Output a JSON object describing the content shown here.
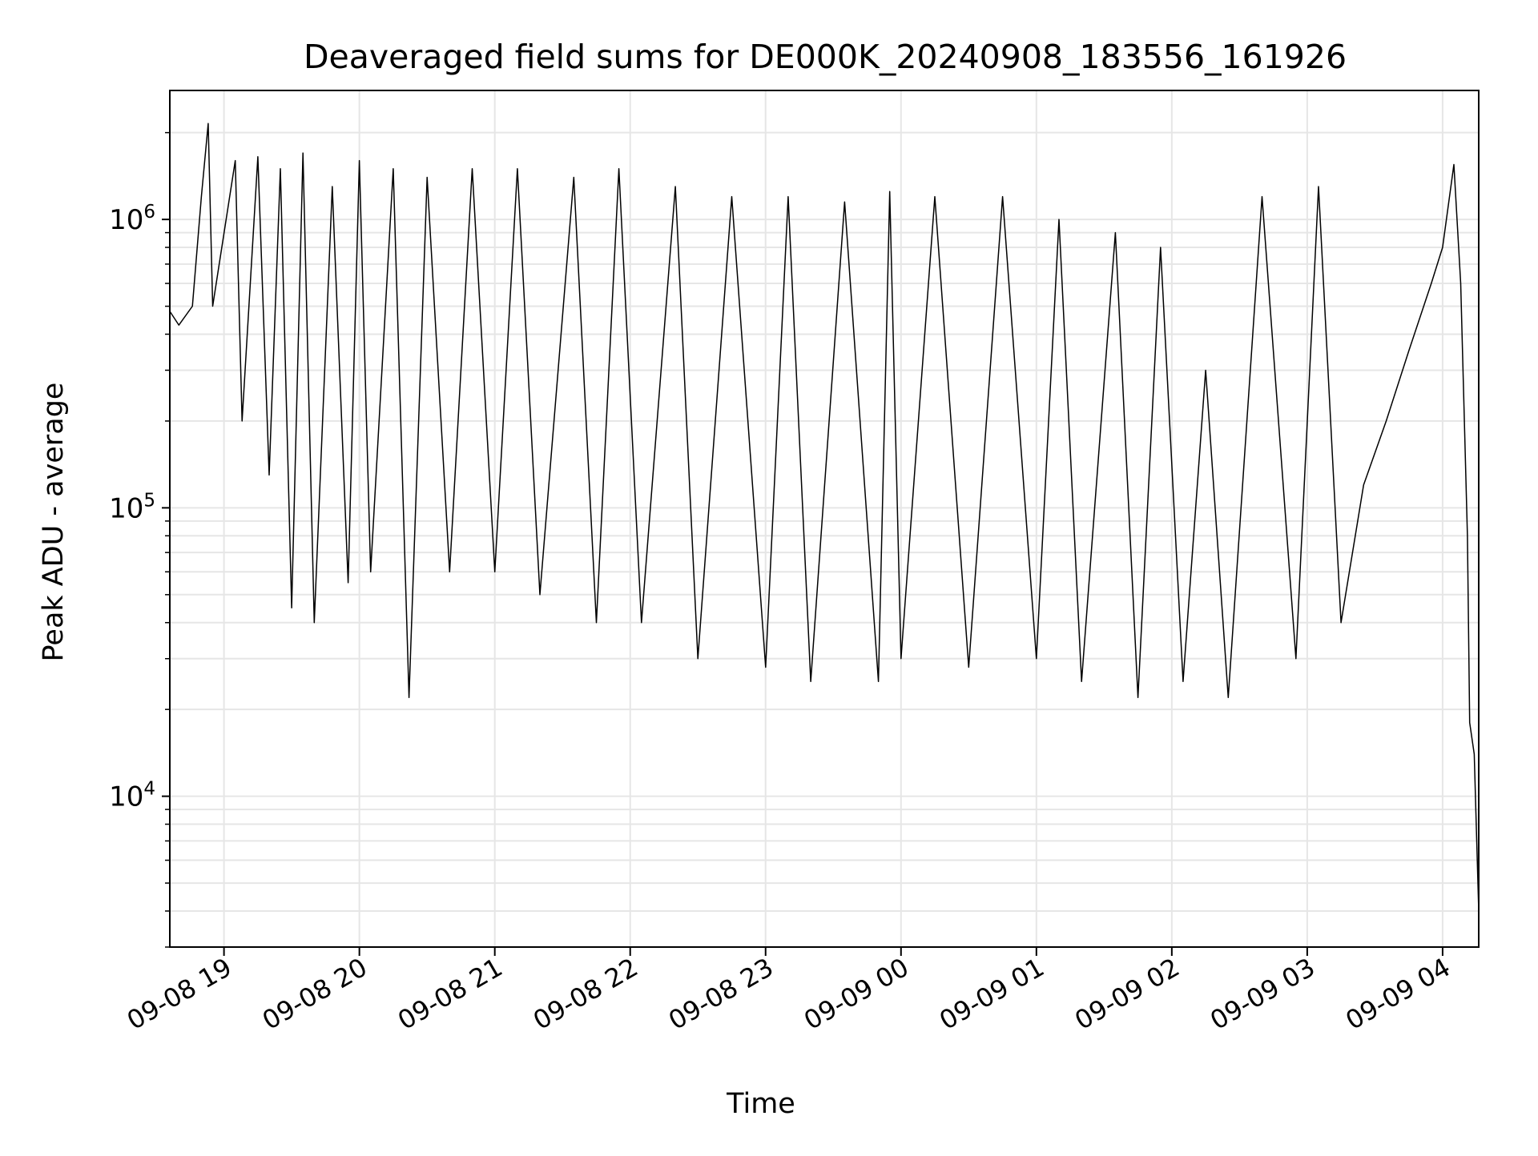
{
  "chart_data": {
    "type": "line",
    "title": "Deaveraged field sums for DE000K_20240908_183556_161926",
    "xlabel": "Time",
    "ylabel": "Peak ADU - average",
    "yscale": "log",
    "ylim": [
      3000,
      2800000
    ],
    "xlim": [
      "2024-09-08 18:36",
      "2024-09-09 04:16"
    ],
    "grid": true,
    "x_ticks": [
      {
        "value": "2024-09-08 19:00",
        "label": "09-08 19"
      },
      {
        "value": "2024-09-08 20:00",
        "label": "09-08 20"
      },
      {
        "value": "2024-09-08 21:00",
        "label": "09-08 21"
      },
      {
        "value": "2024-09-08 22:00",
        "label": "09-08 22"
      },
      {
        "value": "2024-09-08 23:00",
        "label": "09-08 23"
      },
      {
        "value": "2024-09-09 00:00",
        "label": "09-09 00"
      },
      {
        "value": "2024-09-09 01:00",
        "label": "09-09 01"
      },
      {
        "value": "2024-09-09 02:00",
        "label": "09-09 02"
      },
      {
        "value": "2024-09-09 03:00",
        "label": "09-09 03"
      },
      {
        "value": "2024-09-09 04:00",
        "label": "09-09 04"
      }
    ],
    "y_ticks": [
      {
        "value": 10000,
        "base": "10",
        "exp": "4"
      },
      {
        "value": 100000,
        "base": "10",
        "exp": "5"
      },
      {
        "value": 1000000,
        "base": "10",
        "exp": "6"
      }
    ],
    "series": [
      {
        "color": "#000000",
        "points": [
          [
            "2024-09-08 18:36",
            480000
          ],
          [
            "2024-09-08 18:40",
            430000
          ],
          [
            "2024-09-08 18:46",
            500000
          ],
          [
            "2024-09-08 18:50",
            1200000
          ],
          [
            "2024-09-08 18:53",
            2150000
          ],
          [
            "2024-09-08 18:55",
            500000
          ],
          [
            "2024-09-08 19:05",
            1600000
          ],
          [
            "2024-09-08 19:08",
            200000
          ],
          [
            "2024-09-08 19:15",
            1650000
          ],
          [
            "2024-09-08 19:20",
            130000
          ],
          [
            "2024-09-08 19:25",
            1500000
          ],
          [
            "2024-09-08 19:30",
            45000
          ],
          [
            "2024-09-08 19:35",
            1700000
          ],
          [
            "2024-09-08 19:40",
            40000
          ],
          [
            "2024-09-08 19:48",
            1300000
          ],
          [
            "2024-09-08 19:55",
            55000
          ],
          [
            "2024-09-08 20:00",
            1600000
          ],
          [
            "2024-09-08 20:05",
            60000
          ],
          [
            "2024-09-08 20:15",
            1500000
          ],
          [
            "2024-09-08 20:22",
            22000
          ],
          [
            "2024-09-08 20:30",
            1400000
          ],
          [
            "2024-09-08 20:40",
            60000
          ],
          [
            "2024-09-08 20:50",
            1500000
          ],
          [
            "2024-09-08 21:00",
            60000
          ],
          [
            "2024-09-08 21:10",
            1500000
          ],
          [
            "2024-09-08 21:20",
            50000
          ],
          [
            "2024-09-08 21:35",
            1400000
          ],
          [
            "2024-09-08 21:45",
            40000
          ],
          [
            "2024-09-08 21:55",
            1500000
          ],
          [
            "2024-09-08 22:05",
            40000
          ],
          [
            "2024-09-08 22:20",
            1300000
          ],
          [
            "2024-09-08 22:30",
            30000
          ],
          [
            "2024-09-08 22:45",
            1200000
          ],
          [
            "2024-09-08 23:00",
            28000
          ],
          [
            "2024-09-08 23:10",
            1200000
          ],
          [
            "2024-09-08 23:20",
            25000
          ],
          [
            "2024-09-08 23:35",
            1150000
          ],
          [
            "2024-09-08 23:50",
            25000
          ],
          [
            "2024-09-08 23:55",
            1250000
          ],
          [
            "2024-09-09 00:00",
            30000
          ],
          [
            "2024-09-09 00:15",
            1200000
          ],
          [
            "2024-09-09 00:30",
            28000
          ],
          [
            "2024-09-09 00:45",
            1200000
          ],
          [
            "2024-09-09 01:00",
            30000
          ],
          [
            "2024-09-09 01:10",
            1000000
          ],
          [
            "2024-09-09 01:20",
            25000
          ],
          [
            "2024-09-09 01:35",
            900000
          ],
          [
            "2024-09-09 01:45",
            22000
          ],
          [
            "2024-09-09 01:55",
            800000
          ],
          [
            "2024-09-09 02:05",
            25000
          ],
          [
            "2024-09-09 02:15",
            300000
          ],
          [
            "2024-09-09 02:25",
            22000
          ],
          [
            "2024-09-09 02:40",
            1200000
          ],
          [
            "2024-09-09 02:55",
            30000
          ],
          [
            "2024-09-09 03:05",
            1300000
          ],
          [
            "2024-09-09 03:15",
            40000
          ],
          [
            "2024-09-09 03:25",
            120000
          ],
          [
            "2024-09-09 03:35",
            200000
          ],
          [
            "2024-09-09 03:45",
            350000
          ],
          [
            "2024-09-09 03:55",
            600000
          ],
          [
            "2024-09-09 04:00",
            800000
          ],
          [
            "2024-09-09 04:05",
            1550000
          ],
          [
            "2024-09-09 04:08",
            600000
          ],
          [
            "2024-09-09 04:11",
            80000
          ],
          [
            "2024-09-09 04:12",
            18000
          ],
          [
            "2024-09-09 04:14",
            14000
          ],
          [
            "2024-09-09 04:16",
            4000
          ]
        ]
      }
    ]
  }
}
